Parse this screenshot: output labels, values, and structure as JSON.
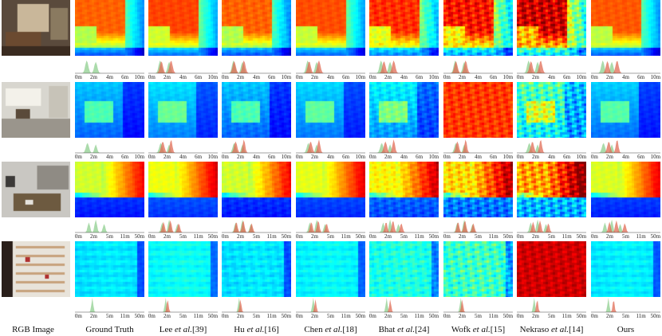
{
  "columns": [
    {
      "key": "rgb",
      "label": "RGB Image",
      "name_prefix": "",
      "name_italic": "",
      "ref": ""
    },
    {
      "key": "gt",
      "label": "Ground Truth",
      "name_prefix": "",
      "name_italic": "",
      "ref": ""
    },
    {
      "key": "lee",
      "label": "",
      "name_prefix": "Lee ",
      "name_italic": "et al.",
      "ref": "[39]"
    },
    {
      "key": "hu",
      "label": "",
      "name_prefix": "Hu ",
      "name_italic": "et al.",
      "ref": "[16]"
    },
    {
      "key": "chen",
      "label": "",
      "name_prefix": "Chen ",
      "name_italic": "et al.",
      "ref": "[18]"
    },
    {
      "key": "bhat",
      "label": "",
      "name_prefix": "Bhat ",
      "name_italic": "et al.",
      "ref": "[24]"
    },
    {
      "key": "wofk",
      "label": "",
      "name_prefix": "Wofk ",
      "name_italic": "et al.",
      "ref": "[15]"
    },
    {
      "key": "nekraso",
      "label": "",
      "name_prefix": "Nekraso ",
      "name_italic": "et al.",
      "ref": "[14]"
    },
    {
      "key": "ours",
      "label": "Ours",
      "name_prefix": "",
      "name_italic": "",
      "ref": ""
    }
  ],
  "histogram_axes": [
    [
      "0m",
      "2m",
      "4m",
      "6m",
      "10m"
    ],
    [
      "0m",
      "2m",
      "4m",
      "6m",
      "10m"
    ],
    [
      "0m",
      "2m",
      "5m",
      "11m",
      "50m"
    ],
    [
      "0m",
      "2m",
      "5m",
      "11m",
      "50m"
    ]
  ],
  "colors": {
    "gt": "#8fcf8f",
    "pred": "#e06b54",
    "overlap": "#b98a64"
  }
}
